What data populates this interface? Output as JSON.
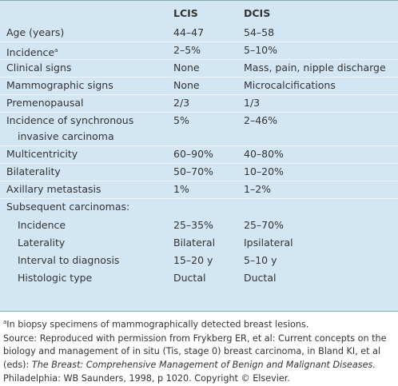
{
  "table": {
    "columns": [
      "LCIS",
      "DCIS"
    ],
    "rows": [
      {
        "label": [
          "Age (years)"
        ],
        "cells": [
          "44–47",
          "54–58"
        ]
      },
      {
        "label": [
          "Incidence"
        ],
        "note": "a",
        "cells": [
          "2–5%",
          "5–10%"
        ]
      },
      {
        "label": [
          "Clinical signs"
        ],
        "cells": [
          "None",
          "Mass, pain, nipple discharge"
        ]
      },
      {
        "label": [
          "Mammographic signs"
        ],
        "cells": [
          "None",
          "Microcalcifications"
        ]
      },
      {
        "label": [
          "Premenopausal"
        ],
        "cells": [
          "2/3",
          "1/3"
        ]
      },
      {
        "label": [
          "Incidence of synchronous",
          "invasive carcinoma"
        ],
        "cells": [
          "5%",
          "2–46%"
        ]
      },
      {
        "label": [
          "Multicentricity"
        ],
        "cells": [
          "60–90%",
          "40–80%"
        ]
      },
      {
        "label": [
          "Bilaterality"
        ],
        "cells": [
          "50–70%",
          "10–20%"
        ]
      },
      {
        "label": [
          "Axillary metastasis"
        ],
        "cells": [
          "1%",
          "1–2%"
        ]
      }
    ],
    "group": {
      "label": "Subsequent carcinomas:",
      "rows": [
        {
          "label": "Incidence",
          "cells": [
            "25–35%",
            "25–70%"
          ]
        },
        {
          "label": "Laterality",
          "cells": [
            "Bilateral",
            "Ipsilateral"
          ]
        },
        {
          "label": "Interval to diagnosis",
          "cells": [
            "15–20 y",
            "5–10 y"
          ]
        },
        {
          "label": "Histologic type",
          "cells": [
            "Ductal",
            "Ductal"
          ]
        }
      ]
    }
  },
  "footnote": {
    "marker": "a",
    "text": "In biopsy specimens of mammographically detected breast lesions."
  },
  "source": [
    {
      "text": "Source: Reproduced with permission from Frykberg ER, et al: Current concepts on the biology and management of in situ (Tis, stage 0) breast carcinoma, in Bland KI, et al (eds): "
    },
    {
      "italic": "The Breast: Comprehensive Management of Benign and Malignant Diseases."
    },
    {
      "text": " Philadelphia: WB Saunders, 1998, p 1020. Copyright © Elsevier."
    }
  ]
}
